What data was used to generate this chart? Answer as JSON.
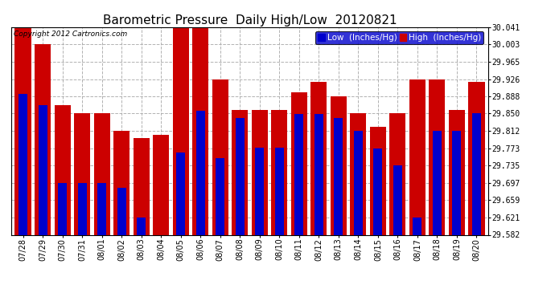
{
  "title": "Barometric Pressure  Daily High/Low  20120821",
  "copyright": "Copyright 2012 Cartronics.com",
  "legend_low": "Low  (Inches/Hg)",
  "legend_high": "High  (Inches/Hg)",
  "categories": [
    "07/28",
    "07/29",
    "07/30",
    "07/31",
    "08/01",
    "08/02",
    "08/03",
    "08/04",
    "08/05",
    "08/06",
    "08/07",
    "08/08",
    "08/09",
    "08/10",
    "08/11",
    "08/12",
    "08/13",
    "08/14",
    "08/15",
    "08/16",
    "08/17",
    "08/18",
    "08/19",
    "08/20"
  ],
  "low_values": [
    29.893,
    29.868,
    29.697,
    29.697,
    29.697,
    29.686,
    29.621,
    29.582,
    29.764,
    29.856,
    29.752,
    29.84,
    29.775,
    29.775,
    29.849,
    29.849,
    29.84,
    29.812,
    29.773,
    29.735,
    29.621,
    29.812,
    29.812,
    29.85
  ],
  "high_values": [
    30.041,
    30.003,
    29.868,
    29.85,
    29.85,
    29.812,
    29.795,
    29.803,
    30.041,
    30.041,
    29.926,
    29.858,
    29.858,
    29.858,
    29.896,
    29.92,
    29.888,
    29.85,
    29.82,
    29.85,
    29.926,
    29.926,
    29.858,
    29.92
  ],
  "ymin": 29.582,
  "ymax": 30.041,
  "yticks": [
    29.582,
    29.621,
    29.659,
    29.697,
    29.735,
    29.773,
    29.812,
    29.85,
    29.888,
    29.926,
    29.965,
    30.003,
    30.041
  ],
  "bar_width": 0.82,
  "low_color": "#0000cc",
  "high_color": "#cc0000",
  "bg_color": "#ffffff",
  "grid_color": "#aaaaaa",
  "title_fontsize": 11,
  "tick_fontsize": 7,
  "legend_fontsize": 7.5
}
